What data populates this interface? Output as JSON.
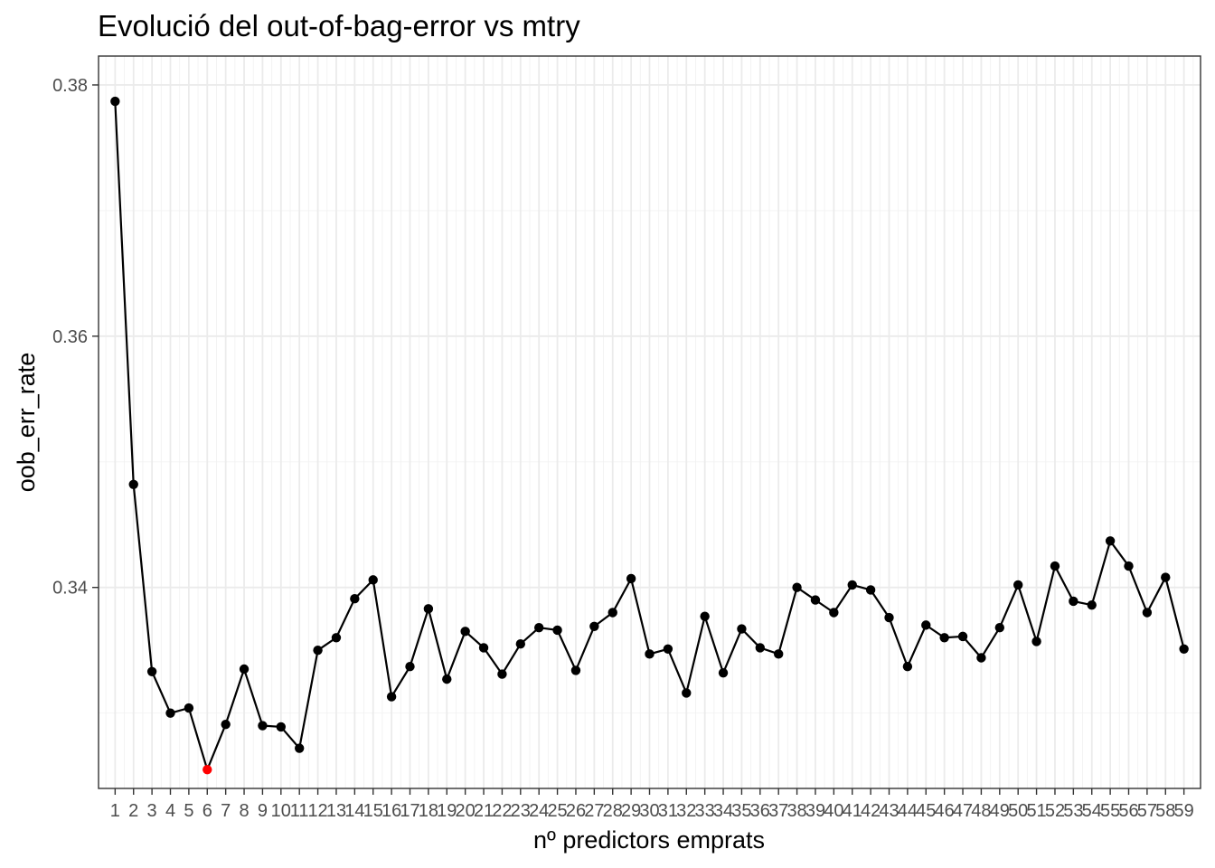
{
  "chart_data": {
    "type": "line",
    "title": "Evolució del out-of-bag-error vs mtry",
    "xlabel": "nº predictors emprats",
    "ylabel": "oob_err_rate",
    "x": [
      1,
      2,
      3,
      4,
      5,
      6,
      7,
      8,
      9,
      10,
      11,
      12,
      13,
      14,
      15,
      16,
      17,
      18,
      19,
      20,
      21,
      22,
      23,
      24,
      25,
      26,
      27,
      28,
      29,
      30,
      31,
      32,
      33,
      34,
      35,
      36,
      37,
      38,
      39,
      40,
      41,
      42,
      43,
      44,
      45,
      46,
      47,
      48,
      49,
      50,
      51,
      52,
      53,
      54,
      55,
      56,
      57,
      58,
      59
    ],
    "x_tick_labels": [
      "1",
      "2",
      "3",
      "4",
      "5",
      "6",
      "7",
      "8",
      "9",
      "10",
      "11",
      "12",
      "13",
      "14",
      "15",
      "16",
      "17",
      "18",
      "19",
      "20",
      "21",
      "22",
      "23",
      "24",
      "25",
      "26",
      "27",
      "28",
      "29",
      "30",
      "31",
      "32",
      "33",
      "34",
      "35",
      "36",
      "37",
      "38",
      "39",
      "40",
      "41",
      "42",
      "43",
      "44",
      "45",
      "46",
      "47",
      "48",
      "49",
      "50",
      "51",
      "52",
      "53",
      "54",
      "55",
      "56",
      "57",
      "58",
      "59"
    ],
    "xlim": [
      0.1,
      59.9
    ],
    "series": [
      {
        "values": [
          0.3787,
          0.3482,
          0.3333,
          0.33,
          0.3304,
          0.3255,
          0.3291,
          0.3335,
          0.329,
          0.3289,
          0.3272,
          0.335,
          0.336,
          0.3391,
          0.3406,
          0.3313,
          0.3337,
          0.3383,
          0.3327,
          0.3365,
          0.3352,
          0.3331,
          0.3355,
          0.3368,
          0.3366,
          0.3334,
          0.3369,
          0.338,
          0.3407,
          0.3347,
          0.3351,
          0.3316,
          0.3377,
          0.3332,
          0.3367,
          0.3352,
          0.3347,
          0.34,
          0.339,
          0.338,
          0.3402,
          0.3398,
          0.3376,
          0.3337,
          0.337,
          0.336,
          0.3361,
          0.3344,
          0.3368,
          0.3402,
          0.3357,
          0.3417,
          0.3389,
          0.3386,
          0.3437,
          0.3417,
          0.338,
          0.3408,
          0.3351
        ],
        "color": "#000000"
      }
    ],
    "highlight": {
      "x": 6,
      "y": 0.3255,
      "color": "#ff0000"
    },
    "y_ticks": [
      0.34,
      0.36,
      0.38
    ],
    "y_tick_labels": [
      "0.34",
      "0.36",
      "0.38"
    ],
    "y_minor_ticks": [
      0.33,
      0.35,
      0.37
    ],
    "ylim": [
      0.324,
      0.3823
    ],
    "grid": true,
    "theme": "bw"
  }
}
